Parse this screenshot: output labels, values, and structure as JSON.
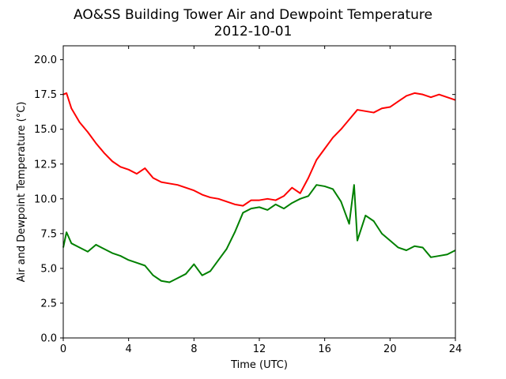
{
  "chart_data": {
    "type": "line",
    "title": "AO&SS Building Tower Air and Dewpoint Temperature",
    "subtitle": "2012-10-01",
    "xlabel": "Time (UTC)",
    "ylabel": "Air and Dewpoint Temperature (°C)",
    "xlim": [
      0,
      24
    ],
    "ylim": [
      0,
      21
    ],
    "x_ticks": [
      0,
      4,
      8,
      12,
      16,
      20,
      24
    ],
    "y_ticks": [
      0.0,
      2.5,
      5.0,
      7.5,
      10.0,
      12.5,
      15.0,
      17.5,
      20.0
    ],
    "x_tick_labels": [
      "0",
      "4",
      "8",
      "12",
      "16",
      "20",
      "24"
    ],
    "y_tick_labels": [
      "0.0",
      "2.5",
      "5.0",
      "7.5",
      "10.0",
      "12.5",
      "15.0",
      "17.5",
      "20.0"
    ],
    "grid": false,
    "legend": "none",
    "series": [
      {
        "color": "#ff0000",
        "x": [
          0,
          0.2,
          0.5,
          1,
          1.5,
          2,
          2.5,
          3,
          3.5,
          4,
          4.5,
          5,
          5.5,
          6,
          6.5,
          7,
          7.5,
          8,
          8.5,
          9,
          9.5,
          10,
          10.5,
          11,
          11.5,
          12,
          12.5,
          13,
          13.5,
          14,
          14.5,
          15,
          15.5,
          16,
          16.5,
          17,
          17.5,
          18,
          18.5,
          19,
          19.5,
          20,
          20.5,
          21,
          21.5,
          22,
          22.5,
          23,
          23.5,
          24
        ],
        "values": [
          17.5,
          17.6,
          16.5,
          15.5,
          14.8,
          14.0,
          13.3,
          12.7,
          12.3,
          12.1,
          11.8,
          12.2,
          11.5,
          11.2,
          11.1,
          11.0,
          10.8,
          10.6,
          10.3,
          10.1,
          10.0,
          9.8,
          9.6,
          9.5,
          9.9,
          9.9,
          10.0,
          9.9,
          10.2,
          10.8,
          10.4,
          11.5,
          12.8,
          13.6,
          14.4,
          15.0,
          15.7,
          16.4,
          16.3,
          16.2,
          16.5,
          16.6,
          17.0,
          17.4,
          17.6,
          17.5,
          17.3,
          17.5,
          17.3,
          17.1
        ]
      },
      {
        "color": "#008000",
        "x": [
          0,
          0.2,
          0.5,
          1,
          1.5,
          2,
          2.5,
          3,
          3.5,
          4,
          4.5,
          5,
          5.5,
          6,
          6.5,
          7,
          7.5,
          8,
          8.5,
          9,
          9.5,
          10,
          10.5,
          11,
          11.5,
          12,
          12.5,
          13,
          13.5,
          14,
          14.5,
          15,
          15.5,
          16,
          16.5,
          17,
          17.5,
          17.8,
          18,
          18.5,
          19,
          19.5,
          20,
          20.5,
          21,
          21.5,
          22,
          22.5,
          23,
          23.5,
          24
        ],
        "values": [
          6.5,
          7.6,
          6.8,
          6.5,
          6.2,
          6.7,
          6.4,
          6.1,
          5.9,
          5.6,
          5.4,
          5.2,
          4.5,
          4.1,
          4.0,
          4.3,
          4.6,
          5.3,
          4.5,
          4.8,
          5.6,
          6.4,
          7.6,
          9.0,
          9.3,
          9.4,
          9.2,
          9.6,
          9.3,
          9.7,
          10.0,
          10.2,
          11.0,
          10.9,
          10.7,
          9.8,
          8.2,
          11.0,
          7.0,
          8.8,
          8.4,
          7.5,
          7.0,
          6.5,
          6.3,
          6.6,
          6.5,
          5.8,
          5.9,
          6.0,
          6.3
        ]
      }
    ]
  }
}
